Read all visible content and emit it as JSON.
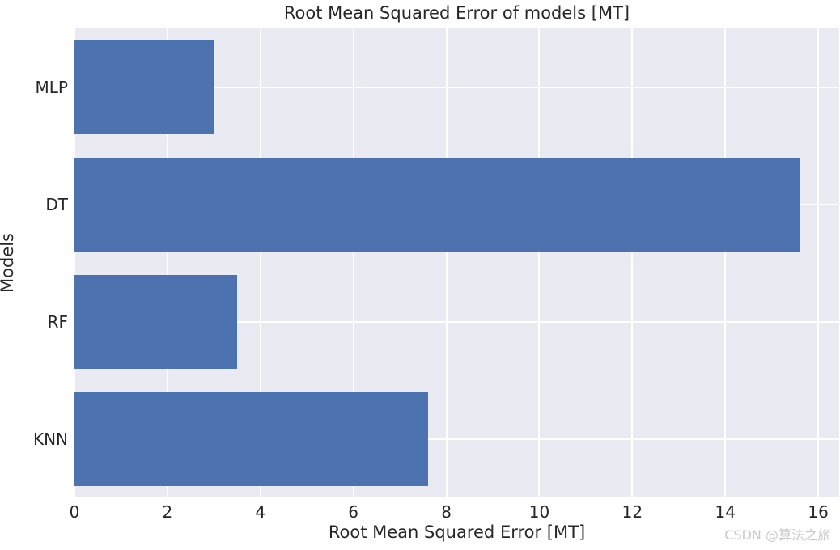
{
  "title": "Root Mean Squared Error of models [MT]",
  "watermark": "CSDN @算法之旅",
  "colors": {
    "bar": "#4c72b0",
    "plot_background": "#eaeaf2",
    "grid": "#ffffff",
    "text": "#262626",
    "watermark": "#c9c9c9",
    "figure_background": "#ffffff"
  },
  "chart_data": {
    "type": "bar",
    "orientation": "horizontal",
    "title": "Root Mean Squared Error of models [MT]",
    "xlabel": "Root Mean Squared Error [MT]",
    "ylabel": "Models",
    "categories": [
      "MLP",
      "DT",
      "RF",
      "KNN"
    ],
    "values": [
      3.0,
      15.6,
      3.5,
      7.6
    ],
    "xlim": [
      0,
      16.45
    ],
    "xticks": [
      0,
      2,
      4,
      6,
      8,
      10,
      12,
      14,
      16
    ],
    "grid": true,
    "legend": false,
    "bar_height_fraction": 0.8
  }
}
